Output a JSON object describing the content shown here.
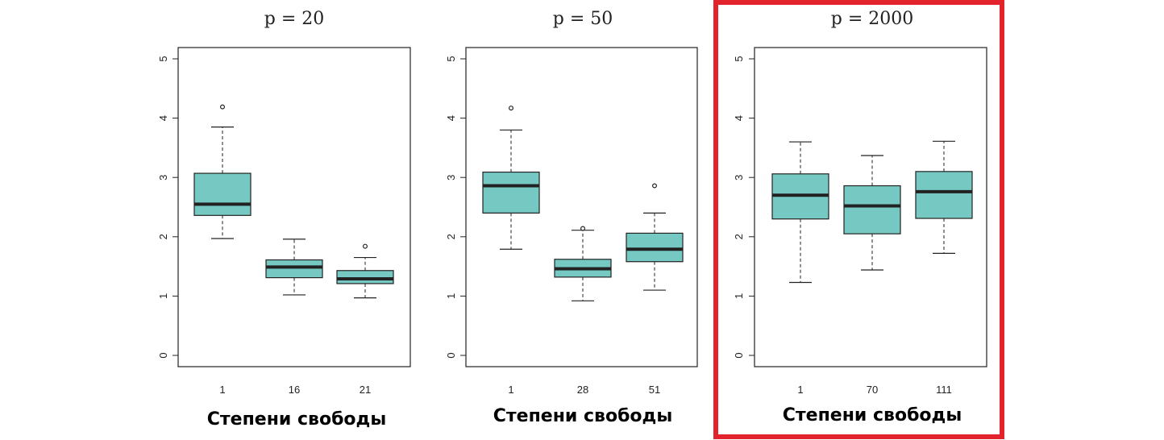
{
  "chart_data": [
    {
      "type": "boxplot",
      "title": "p = 20",
      "xlabel": "Степени свободы",
      "ylabel": "",
      "ylim": [
        0,
        5
      ],
      "yticks": [
        0,
        1,
        2,
        3,
        4,
        5
      ],
      "categories": [
        "1",
        "16",
        "21"
      ],
      "boxes": [
        {
          "whisker_low": 1.97,
          "q1": 2.36,
          "median": 2.55,
          "q3": 3.07,
          "whisker_high": 3.85,
          "outliers": [
            4.19
          ]
        },
        {
          "whisker_low": 1.02,
          "q1": 1.31,
          "median": 1.49,
          "q3": 1.61,
          "whisker_high": 1.96,
          "outliers": []
        },
        {
          "whisker_low": 0.97,
          "q1": 1.21,
          "median": 1.29,
          "q3": 1.43,
          "whisker_high": 1.65,
          "outliers": [
            1.84
          ]
        }
      ],
      "highlighted": false
    },
    {
      "type": "boxplot",
      "title": "p = 50",
      "xlabel": "Степени свободы",
      "ylabel": "",
      "ylim": [
        0,
        5
      ],
      "yticks": [
        0,
        1,
        2,
        3,
        4,
        5
      ],
      "categories": [
        "1",
        "28",
        "51"
      ],
      "boxes": [
        {
          "whisker_low": 1.79,
          "q1": 2.4,
          "median": 2.86,
          "q3": 3.09,
          "whisker_high": 3.8,
          "outliers": [
            4.17
          ]
        },
        {
          "whisker_low": 0.92,
          "q1": 1.32,
          "median": 1.46,
          "q3": 1.62,
          "whisker_high": 2.11,
          "outliers": [
            2.14
          ]
        },
        {
          "whisker_low": 1.1,
          "q1": 1.58,
          "median": 1.79,
          "q3": 2.06,
          "whisker_high": 2.4,
          "outliers": [
            2.86
          ]
        }
      ],
      "highlighted": false
    },
    {
      "type": "boxplot",
      "title": "p = 2000",
      "xlabel": "Степени свободы",
      "ylabel": "",
      "ylim": [
        0,
        5
      ],
      "yticks": [
        0,
        1,
        2,
        3,
        4,
        5
      ],
      "categories": [
        "1",
        "70",
        "111"
      ],
      "boxes": [
        {
          "whisker_low": 1.23,
          "q1": 2.3,
          "median": 2.7,
          "q3": 3.06,
          "whisker_high": 3.6,
          "outliers": []
        },
        {
          "whisker_low": 1.44,
          "q1": 2.05,
          "median": 2.52,
          "q3": 2.86,
          "whisker_high": 3.37,
          "outliers": []
        },
        {
          "whisker_low": 1.72,
          "q1": 2.31,
          "median": 2.76,
          "q3": 3.1,
          "whisker_high": 3.61,
          "outliers": []
        }
      ],
      "highlighted": true
    }
  ],
  "colors": {
    "box_fill": "#76c9c2",
    "box_stroke": "#222222",
    "highlight_border": "#e3232b"
  }
}
